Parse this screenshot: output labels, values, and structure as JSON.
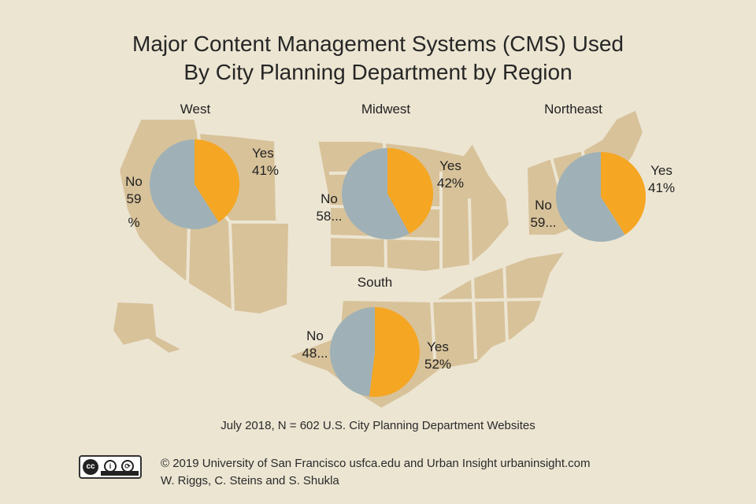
{
  "chart_data": [
    {
      "type": "pie",
      "title": "West",
      "labels": [
        "Yes",
        "No"
      ],
      "values": [
        41,
        59
      ],
      "value_labels": [
        "41%",
        "59\n%"
      ],
      "colors": [
        "#f5a623",
        "#9fb1b6"
      ]
    },
    {
      "type": "pie",
      "title": "Midwest",
      "labels": [
        "Yes",
        "No"
      ],
      "values": [
        42,
        58
      ],
      "value_labels": [
        "42%",
        "58..."
      ],
      "colors": [
        "#f5a623",
        "#9fb1b6"
      ]
    },
    {
      "type": "pie",
      "title": "Northeast",
      "labels": [
        "Yes",
        "No"
      ],
      "values": [
        41,
        59
      ],
      "value_labels": [
        "41%",
        "59..."
      ],
      "colors": [
        "#f5a623",
        "#9fb1b6"
      ]
    },
    {
      "type": "pie",
      "title": "South",
      "labels": [
        "Yes",
        "No"
      ],
      "values": [
        52,
        48
      ],
      "value_labels": [
        "52%",
        "48..."
      ],
      "colors": [
        "#f5a623",
        "#9fb1b6"
      ]
    }
  ],
  "header": {
    "title_line1": "Major Content Management Systems (CMS) Used",
    "title_line2": "By City Planning Department by Region"
  },
  "footer": {
    "caption": "July 2018, N = 602 U.S. City Planning Department Websites",
    "credit_line1": "© 2019 University of San Francisco usfca.edu and Urban Insight urbaninsight.com",
    "credit_line2": "W. Riggs, C. Steins and S. Shukla",
    "license_badge_icon": "creative-commons-by-sa-icon"
  },
  "colors": {
    "background": "#ece5d2",
    "map": "#d8c29a",
    "yes": "#f5a623",
    "no": "#9fb1b6"
  }
}
